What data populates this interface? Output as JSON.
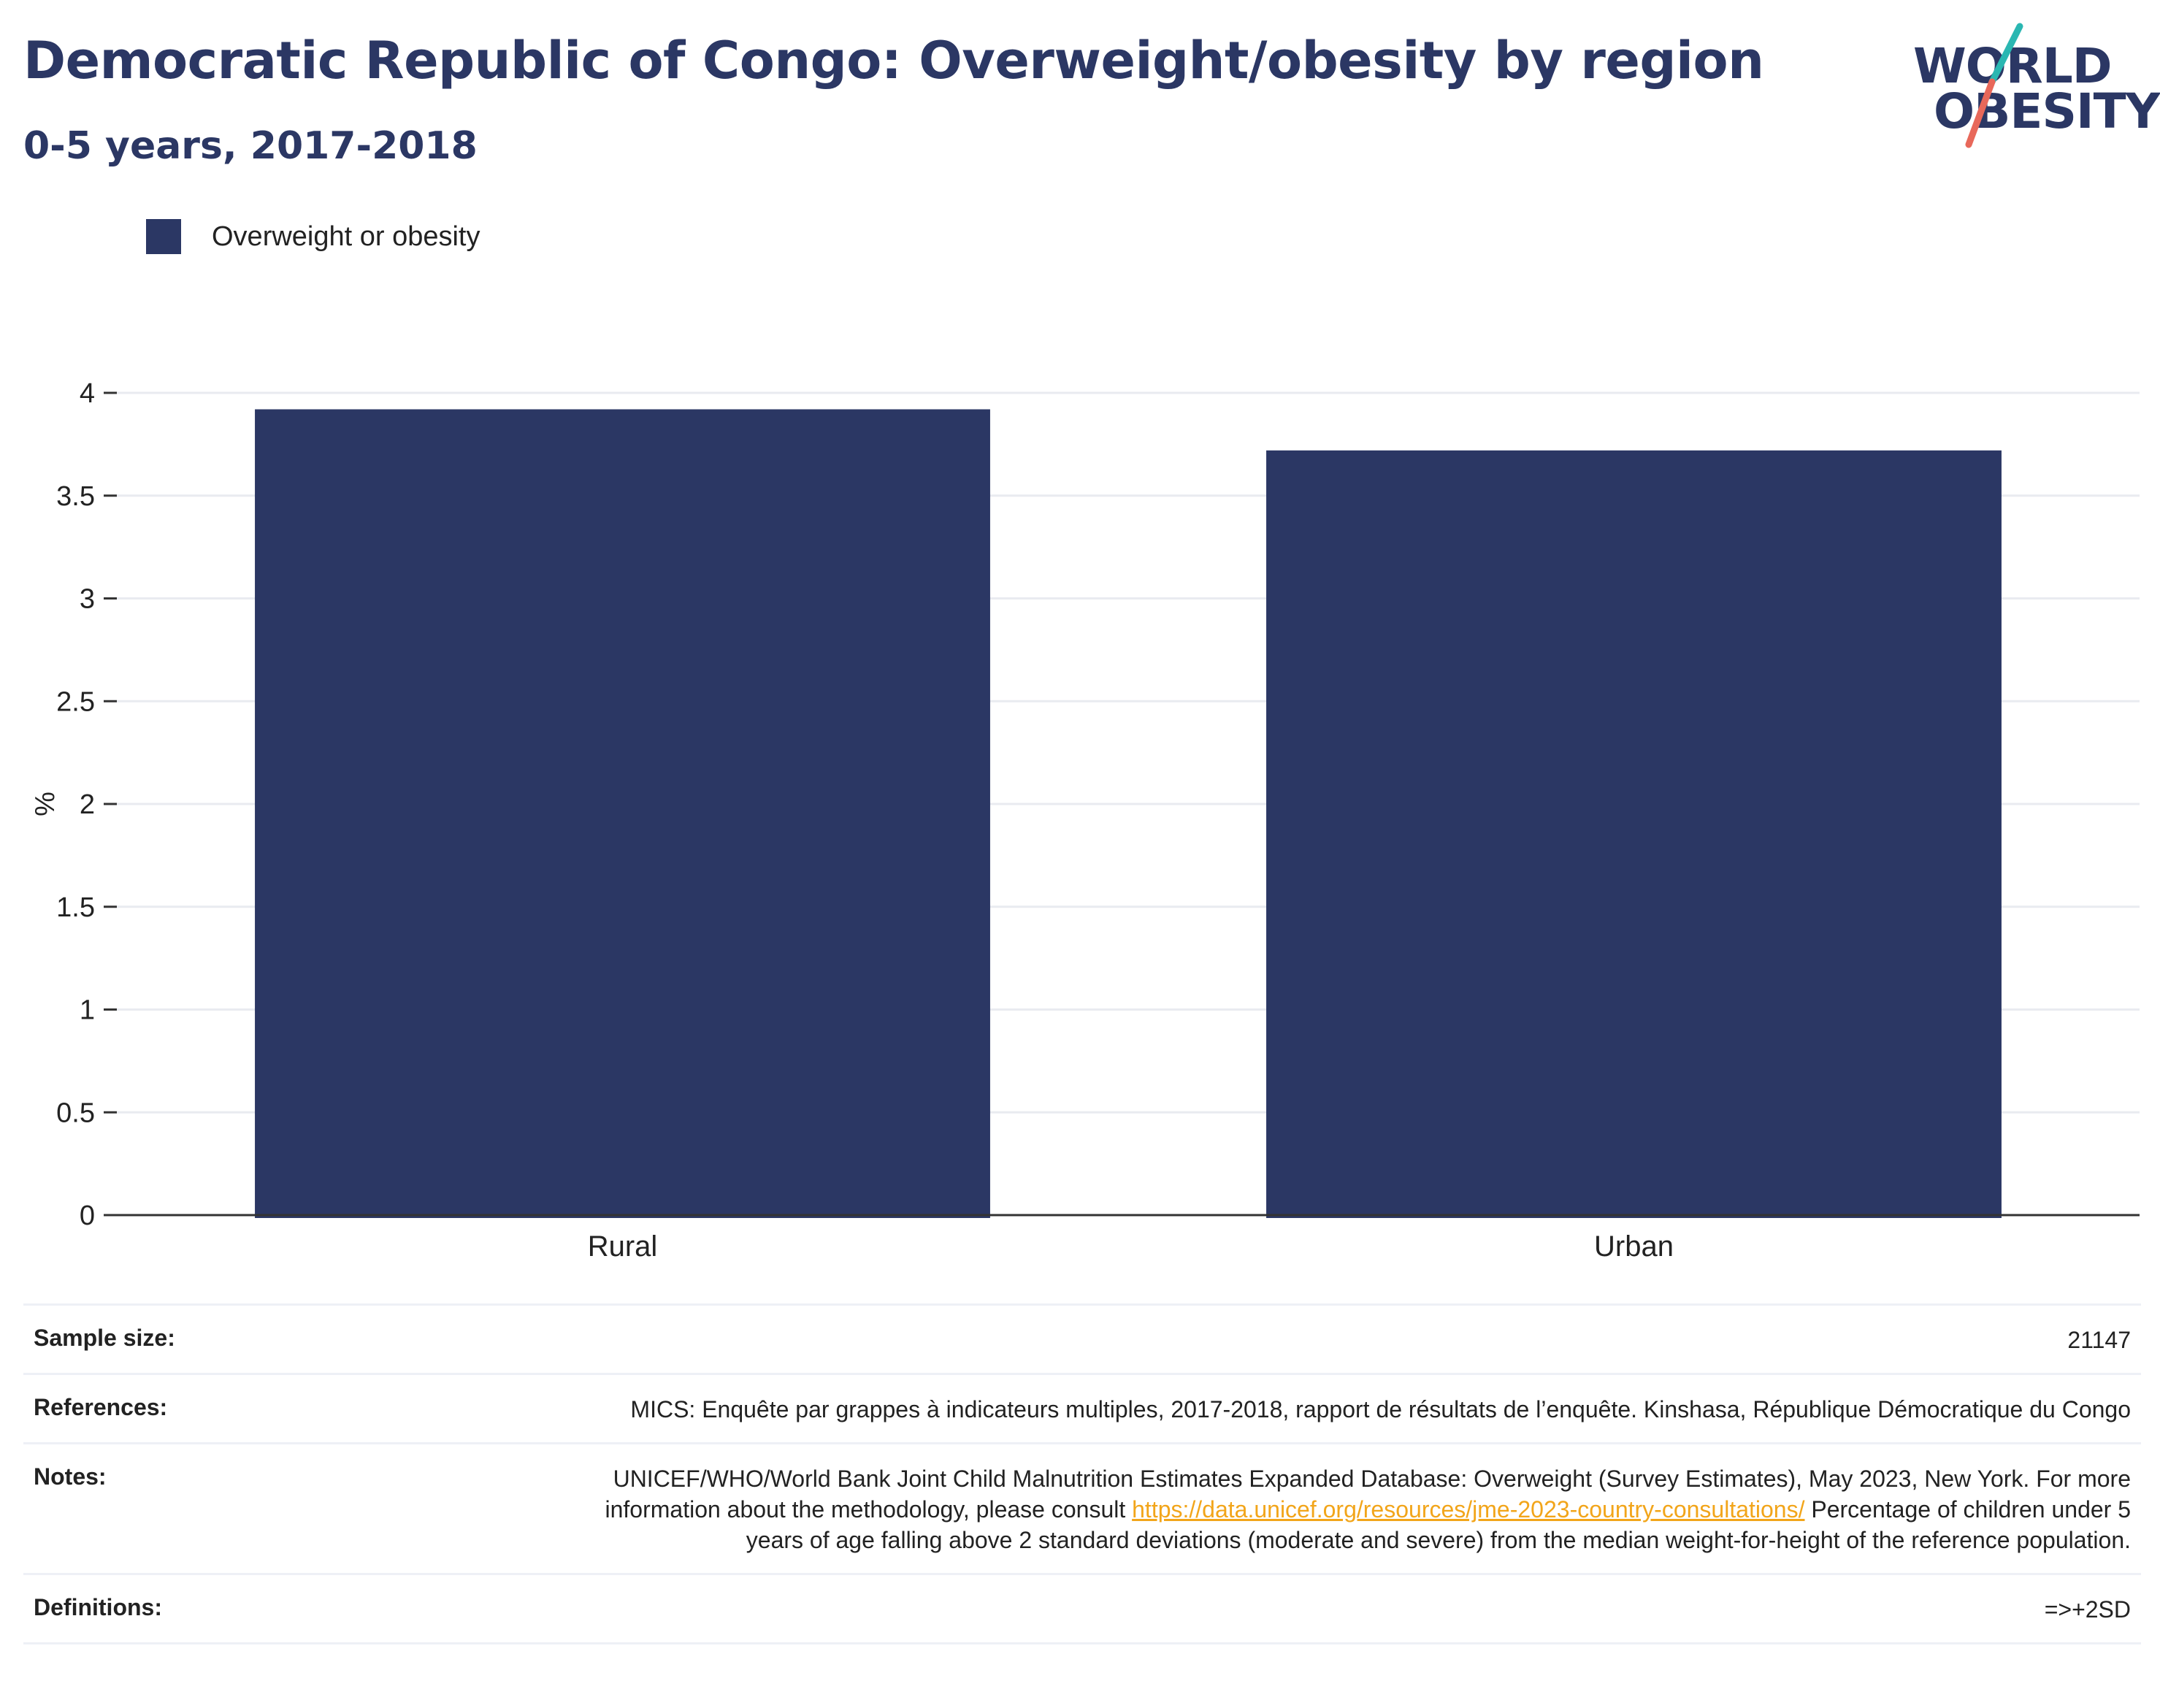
{
  "header": {
    "title": "Democratic Republic of Congo: Overweight/obesity by region",
    "subtitle": "0-5 years, 2017-2018"
  },
  "logo": {
    "line1": "WORLD",
    "line2": "OBESITY",
    "accent_colors": [
      "#2ab7b2",
      "#e8685a"
    ]
  },
  "legend": {
    "items": [
      {
        "label": "Overweight or obesity",
        "color": "#2b3764"
      }
    ]
  },
  "chart_data": {
    "type": "bar",
    "categories": [
      "Rural",
      "Urban"
    ],
    "series": [
      {
        "name": "Overweight or obesity",
        "values": [
          3.92,
          3.72
        ],
        "color": "#2b3764"
      }
    ],
    "ylabel": "%",
    "ylim": [
      0,
      4
    ],
    "yticks": [
      "0",
      "0.5",
      "1",
      "1.5",
      "2",
      "2.5",
      "3",
      "3.5",
      "4"
    ],
    "grid": true,
    "legend_position": "top-left"
  },
  "info": {
    "sample_size_label": "Sample size:",
    "sample_size_value": "21147",
    "references_label": "References:",
    "references_value": "MICS: Enquête par grappes à indicateurs multiples, 2017-2018, rapport de résultats de l’enquête. Kinshasa, République Démocratique du Congo",
    "notes_label": "Notes:",
    "notes_text_1": "UNICEF/WHO/World Bank Joint Child Malnutrition Estimates Expanded Database: Overweight (Survey Estimates), May 2023, New York. For more information about the methodology, please consult ",
    "notes_link": "https://data.unicef.org/resources/jme-2023-country-consultations/",
    "notes_text_2": " Percentage of children under 5 years of age falling above 2 standard deviations (moderate and severe) from the median weight-for-height of the reference population.",
    "definitions_label": "Definitions:",
    "definitions_value": "=>+2SD"
  }
}
